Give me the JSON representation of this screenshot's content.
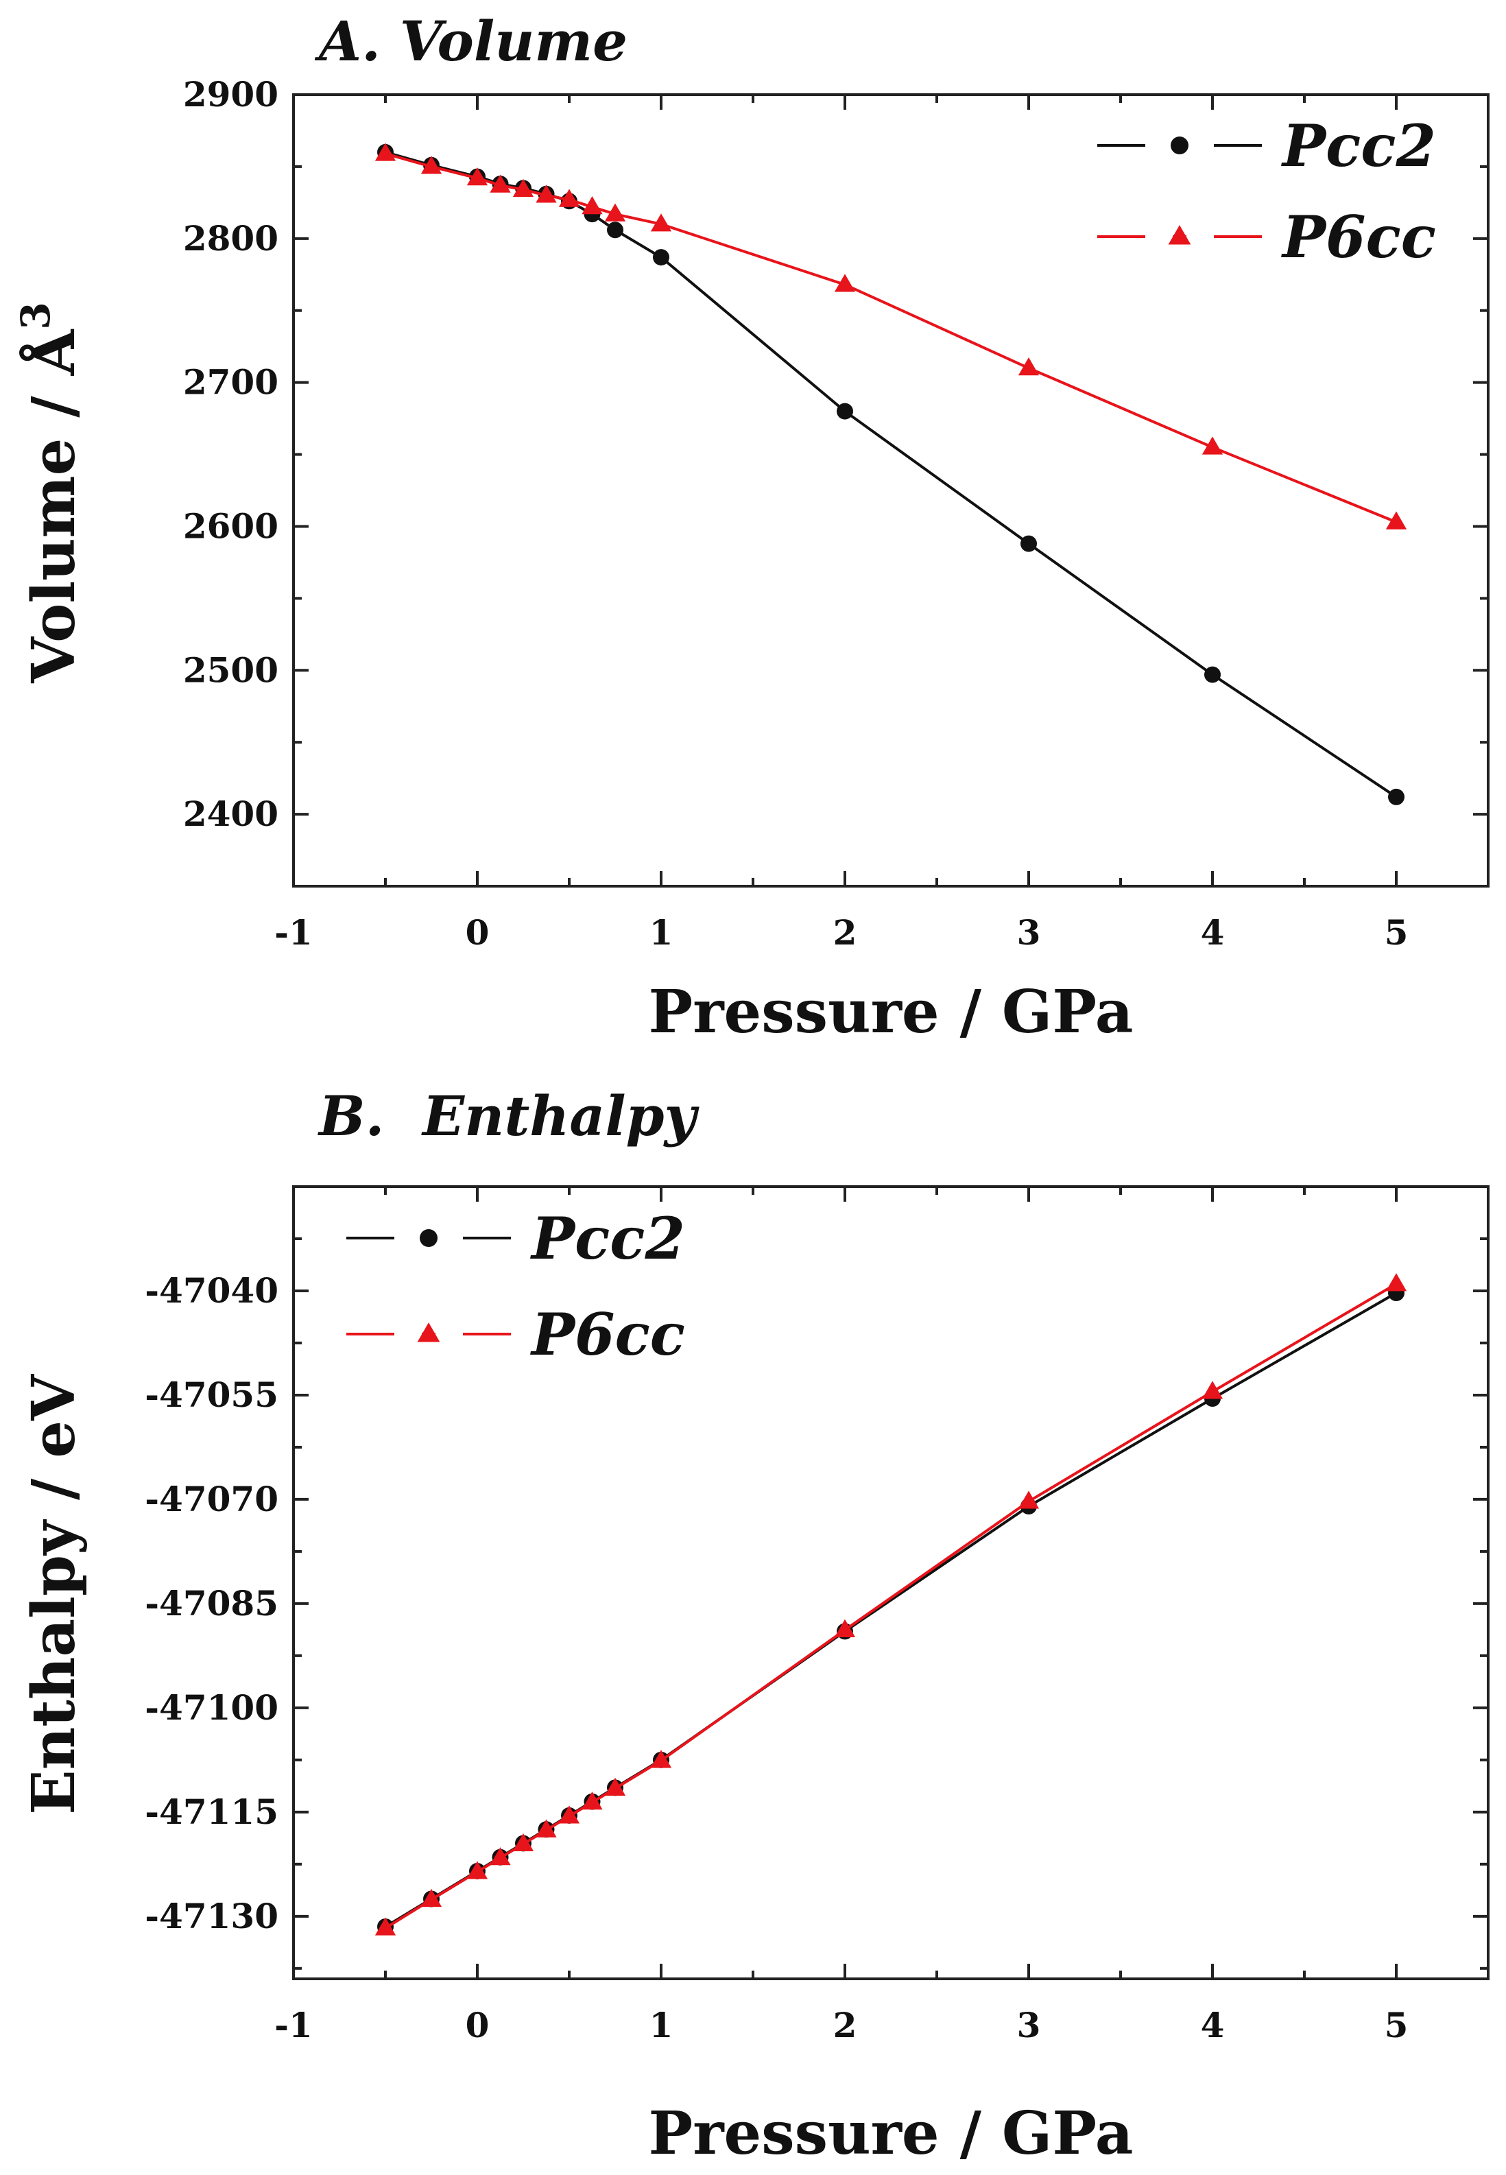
{
  "chart_data": [
    {
      "type": "line",
      "title": "A. Volume",
      "xlabel": "Pressure / GPa",
      "ylabel": "Volume / Å",
      "ylabel_superscript": "3",
      "xlim": [
        -1,
        5.5
      ],
      "ylim": [
        2350,
        2900
      ],
      "xticks": [
        -1,
        0,
        1,
        2,
        3,
        4,
        5
      ],
      "yticks": [
        2400,
        2500,
        2600,
        2700,
        2800,
        2900
      ],
      "legend_position": "top-right",
      "series": [
        {
          "name": "Pcc2",
          "color": "#111111",
          "marker": "circle",
          "x": [
            -0.5,
            -0.25,
            0,
            0.125,
            0.25,
            0.375,
            0.5,
            0.625,
            0.75,
            1,
            2,
            3,
            4,
            5
          ],
          "y": [
            2860,
            2851,
            2843,
            2838,
            2835,
            2831,
            2826,
            2817,
            2806,
            2787,
            2680,
            2588,
            2497,
            2412
          ]
        },
        {
          "name": "P6cc",
          "color": "#e8141b",
          "marker": "triangle",
          "x": [
            -0.5,
            -0.25,
            0,
            0.125,
            0.25,
            0.375,
            0.5,
            0.625,
            0.75,
            1,
            2,
            3,
            4,
            5
          ],
          "y": [
            2859,
            2850,
            2842,
            2837,
            2834,
            2830,
            2827,
            2822,
            2817,
            2810,
            2768,
            2710,
            2655,
            2603
          ]
        }
      ]
    },
    {
      "type": "line",
      "title": "B.  Enthalpy",
      "xlabel": "Pressure / GPa",
      "ylabel": "Enthalpy / eV",
      "xlim": [
        -1,
        5.5
      ],
      "ylim": [
        -47139,
        -47025
      ],
      "xticks": [
        -1,
        0,
        1,
        2,
        3,
        4,
        5
      ],
      "yticks": [
        -47130,
        -47115,
        -47100,
        -47085,
        -47070,
        -47055,
        -47040
      ],
      "legend_position": "top-left",
      "series": [
        {
          "name": "Pcc2",
          "color": "#111111",
          "marker": "circle",
          "x": [
            -0.5,
            -0.25,
            0,
            0.125,
            0.25,
            0.375,
            0.5,
            0.625,
            0.75,
            1,
            2,
            3,
            4,
            5
          ],
          "y": [
            -47131.5,
            -47127.5,
            -47123.5,
            -47121.5,
            -47119.5,
            -47117.5,
            -47115.5,
            -47113.5,
            -47111.5,
            -47107.5,
            -47089.0,
            -47071.0,
            -47055.5,
            -47040.3
          ]
        },
        {
          "name": "P6cc",
          "color": "#e8141b",
          "marker": "triangle",
          "x": [
            -0.5,
            -0.25,
            0,
            0.125,
            0.25,
            0.375,
            0.5,
            0.625,
            0.75,
            1,
            2,
            3,
            4,
            5
          ],
          "y": [
            -47131.7,
            -47127.6,
            -47123.6,
            -47121.6,
            -47119.6,
            -47117.6,
            -47115.6,
            -47113.6,
            -47111.6,
            -47107.6,
            -47088.8,
            -47070.3,
            -47054.5,
            -47039.0
          ]
        }
      ]
    }
  ]
}
